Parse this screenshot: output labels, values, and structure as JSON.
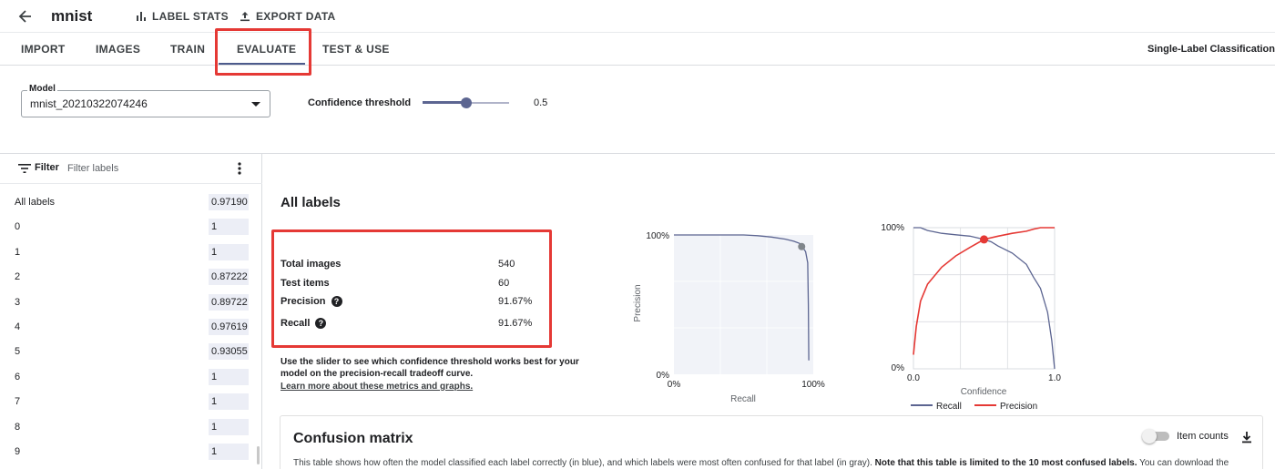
{
  "header": {
    "title": "mnist",
    "label_stats": "LABEL STATS",
    "export_data": "EXPORT DATA"
  },
  "tabs": [
    {
      "label": "IMPORT"
    },
    {
      "label": "IMAGES"
    },
    {
      "label": "TRAIN"
    },
    {
      "label": "EVALUATE",
      "active": true
    },
    {
      "label": "TEST & USE"
    }
  ],
  "model_type": "Single-Label Classification",
  "controls": {
    "model_label": "Model",
    "model_value": "mnist_20210322074246",
    "confidence_label": "Confidence threshold",
    "confidence_value": "0.5",
    "confidence_fraction": 0.5
  },
  "filter": {
    "label": "Filter",
    "placeholder": "Filter labels"
  },
  "labels": [
    {
      "name": "All labels",
      "score": "0.97190"
    },
    {
      "name": "0",
      "score": "1"
    },
    {
      "name": "1",
      "score": "1"
    },
    {
      "name": "2",
      "score": "0.87222"
    },
    {
      "name": "3",
      "score": "0.89722"
    },
    {
      "name": "4",
      "score": "0.97619"
    },
    {
      "name": "5",
      "score": "0.93055"
    },
    {
      "name": "6",
      "score": "1"
    },
    {
      "name": "7",
      "score": "1"
    },
    {
      "name": "8",
      "score": "1"
    },
    {
      "name": "9",
      "score": "1"
    }
  ],
  "summary": {
    "title": "All labels",
    "total_images_label": "Total images",
    "total_images": "540",
    "test_items_label": "Test items",
    "test_items": "60",
    "precision_label": "Precision",
    "precision": "91.67%",
    "recall_label": "Recall",
    "recall": "91.67%",
    "hint": "Use the slider to see which confidence threshold works best for your model on the precision-recall tradeoff curve.",
    "learn_more": "Learn more about these metrics and graphs."
  },
  "pr_chart": {
    "type": "line",
    "x_label": "Recall",
    "y_label": "Precision",
    "x_ticks": [
      "0%",
      "100%"
    ],
    "y_ticks": [
      "100%",
      "0%"
    ],
    "xlim": [
      0,
      1
    ],
    "ylim": [
      0,
      1
    ],
    "points": [
      [
        0,
        1.0
      ],
      [
        0.5,
        1.0
      ],
      [
        0.6,
        0.995
      ],
      [
        0.7,
        0.985
      ],
      [
        0.8,
        0.97
      ],
      [
        0.86,
        0.955
      ],
      [
        0.9,
        0.94
      ],
      [
        0.92,
        0.9167
      ],
      [
        0.945,
        0.88
      ],
      [
        0.96,
        0.8
      ],
      [
        0.965,
        0.5
      ],
      [
        0.968,
        0.1
      ]
    ],
    "marker": [
      0.9167,
      0.9167
    ],
    "line_color": "#5c6591",
    "marker_color": "#80868b"
  },
  "conf_chart": {
    "type": "line",
    "x_label": "Confidence",
    "x_ticks": [
      "0.0",
      "1.0"
    ],
    "y_ticks": [
      "100%",
      "0%"
    ],
    "xlim": [
      0,
      1
    ],
    "ylim": [
      0,
      1
    ],
    "legend": [
      "Recall",
      "Precision"
    ],
    "series": [
      {
        "name": "Recall",
        "color": "#5c6591",
        "points": [
          [
            0,
            1.0
          ],
          [
            0.05,
            1.0
          ],
          [
            0.1,
            0.98
          ],
          [
            0.2,
            0.96
          ],
          [
            0.3,
            0.95
          ],
          [
            0.4,
            0.94
          ],
          [
            0.5,
            0.9167
          ],
          [
            0.55,
            0.9
          ],
          [
            0.6,
            0.87
          ],
          [
            0.7,
            0.82
          ],
          [
            0.8,
            0.74
          ],
          [
            0.85,
            0.65
          ],
          [
            0.9,
            0.57
          ],
          [
            0.95,
            0.4
          ],
          [
            0.98,
            0.2
          ],
          [
            1.0,
            0.0
          ]
        ]
      },
      {
        "name": "Precision",
        "color": "#e53935",
        "points": [
          [
            0,
            0.1
          ],
          [
            0.02,
            0.3
          ],
          [
            0.05,
            0.48
          ],
          [
            0.1,
            0.6
          ],
          [
            0.2,
            0.72
          ],
          [
            0.3,
            0.8
          ],
          [
            0.4,
            0.86
          ],
          [
            0.5,
            0.9167
          ],
          [
            0.6,
            0.94
          ],
          [
            0.7,
            0.96
          ],
          [
            0.8,
            0.975
          ],
          [
            0.85,
            0.99
          ],
          [
            0.9,
            1.0
          ],
          [
            1.0,
            1.0
          ]
        ]
      }
    ],
    "marker": [
      0.5,
      0.9167
    ],
    "marker_color": "#e53935"
  },
  "confusion": {
    "title": "Confusion matrix",
    "item_counts": "Item counts",
    "desc_plain": "This table shows how often the model classified each label correctly (in blue), and which labels were most often confused for that label (in gray). ",
    "desc_bold": "Note that this table is limited to the 10 most confused labels.",
    "desc_tail": " You can download the"
  }
}
